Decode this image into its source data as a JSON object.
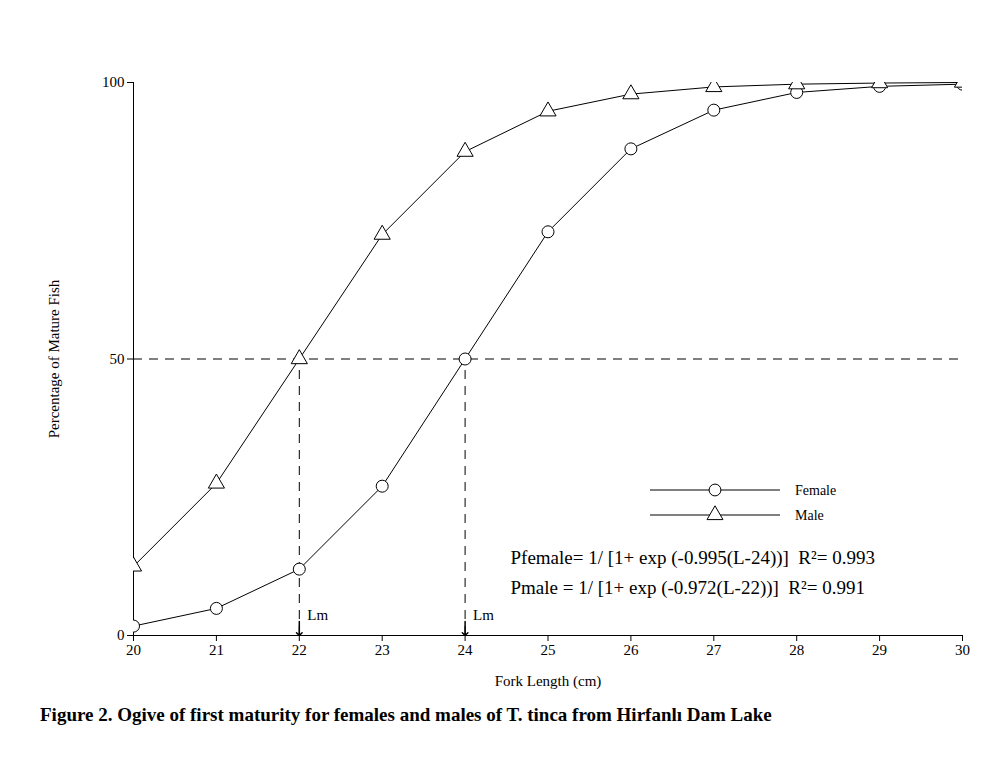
{
  "chart_data": {
    "type": "line",
    "caption": "Figure 2. Ogive of first maturity for females and males of T. tinca from Hirfanlı Dam Lake",
    "x_label": "Fork Length (cm)",
    "y_label": "Percentage of Mature Fish",
    "x": [
      20,
      21,
      22,
      23,
      24,
      25,
      26,
      27,
      28,
      29,
      30
    ],
    "series": [
      {
        "name": "Female",
        "color": "#000000",
        "marker": "circle",
        "line_style": "solid",
        "values": [
          1.7,
          4.9,
          12,
          27,
          50,
          73,
          88,
          95,
          98.2,
          99.3,
          99.7
        ]
      },
      {
        "name": "Male",
        "color": "#000000",
        "marker": "triangle",
        "line_style": "solid",
        "values": [
          12.5,
          27.5,
          50,
          72.5,
          87.5,
          94.8,
          97.9,
          99.2,
          99.7,
          99.9,
          100
        ]
      }
    ],
    "xlim": [
      20,
      30
    ],
    "ylim": [
      0,
      100
    ],
    "xticks": [
      20,
      21,
      22,
      23,
      24,
      25,
      26,
      27,
      28,
      29,
      30
    ],
    "yticks": [
      0,
      50,
      100
    ],
    "grid": false,
    "legend": "lower right",
    "threshold": 50,
    "annotations": [
      {
        "text": "Lm",
        "x": 22
      },
      {
        "text": "Lm",
        "x": 24
      }
    ],
    "equations": [
      "Pfemale= 1/ [1+ exp (-0.995(L-24))]  R²= 0.993",
      "Pmale = 1/ [1+ exp (-0.972(L-22))]  R²= 0.991"
    ]
  }
}
